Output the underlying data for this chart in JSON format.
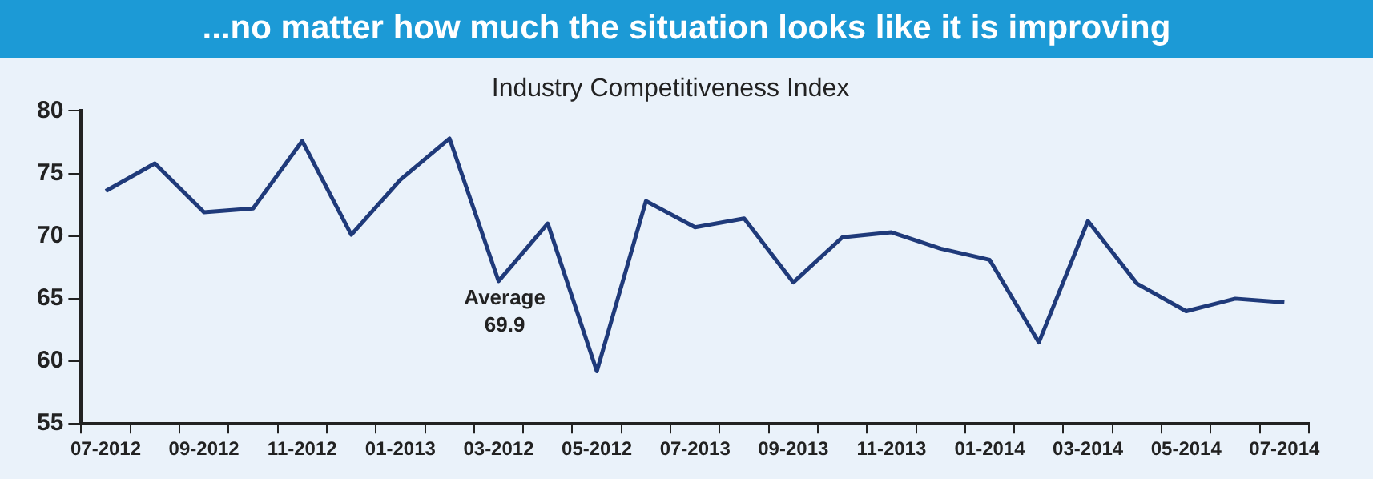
{
  "chart_data": {
    "type": "line",
    "title": "...no matter how much the situation looks like it is improving",
    "subtitle": "Industry Competitiveness Index",
    "categories": [
      "07-2012",
      null,
      "09-2012",
      null,
      "11-2012",
      null,
      "01-2013",
      null,
      "03-2012",
      null,
      "05-2012",
      null,
      "07-2013",
      null,
      "09-2013",
      null,
      "11-2013",
      null,
      "01-2014",
      null,
      "03-2014",
      null,
      "05-2014",
      null,
      "07-2014"
    ],
    "series": [
      {
        "color": "#1f3a7a",
        "values": [
          73.6,
          75.8,
          71.9,
          72.2,
          77.6,
          70.1,
          74.5,
          77.8,
          66.4,
          71.0,
          59.2,
          72.8,
          70.7,
          71.4,
          66.3,
          69.9,
          70.3,
          69.0,
          68.1,
          61.5,
          71.2,
          66.2,
          64.0,
          65.0,
          64.7
        ]
      }
    ],
    "ylim": [
      55,
      80
    ],
    "yticks": [
      55,
      60,
      65,
      70,
      75,
      80
    ],
    "grid": false,
    "legend": false,
    "marker": "none",
    "line_style": "solid",
    "annotations": [
      "Average\n69.9"
    ]
  }
}
